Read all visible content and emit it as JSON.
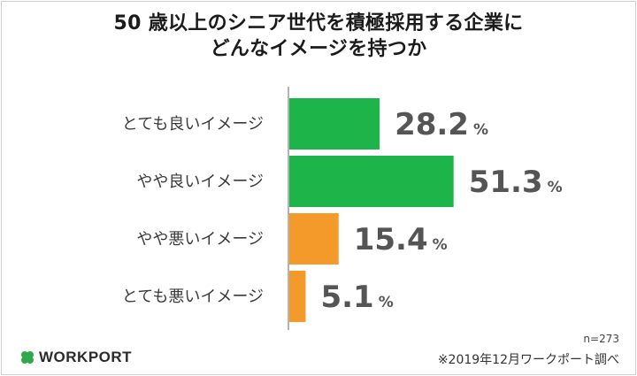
{
  "title_lines": [
    "50 歳以上のシニア世代を積極採用する企業に",
    "どんなイメージを持つか"
  ],
  "chart_data": {
    "type": "bar",
    "orientation": "horizontal",
    "categories": [
      "とても良いイメージ",
      "やや良いイメージ",
      "やや悪いイメージ",
      "とても悪いイメージ"
    ],
    "values": [
      28.2,
      51.3,
      15.4,
      5.1
    ],
    "value_labels": [
      "28.2",
      "51.3",
      "15.4",
      "5.1"
    ],
    "unit": "%",
    "bar_colors": [
      "#1db54a",
      "#1db54a",
      "#f39a2b",
      "#f39a2b"
    ],
    "xlim": [
      0,
      100
    ],
    "grid": false,
    "legend": "none"
  },
  "footer": {
    "sample_size": "n=273",
    "source": "※2019年12月ワークポート調べ",
    "logo_text": "WORKPORT"
  },
  "colors": {
    "positive": "#1db54a",
    "negative": "#f39a2b",
    "logo_clover": "#2eaa4a",
    "axis": "#9a9a9a"
  },
  "icons": {
    "logo_mark": "clover-icon"
  }
}
